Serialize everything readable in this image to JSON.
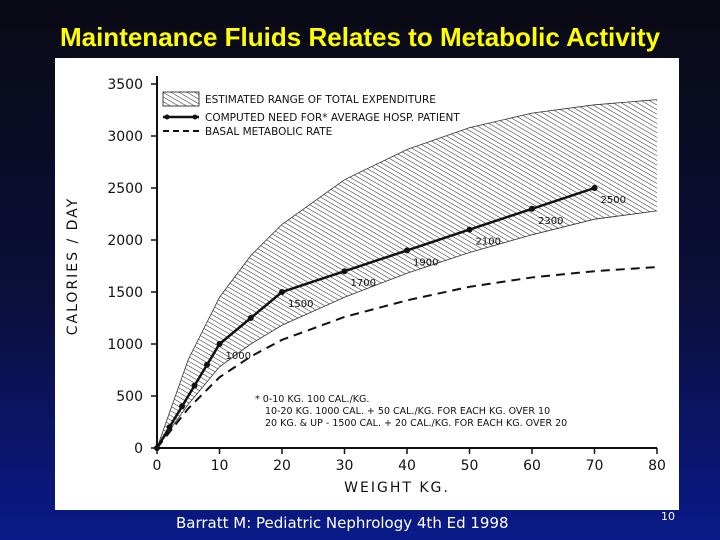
{
  "slide": {
    "title": "Maintenance Fluids Relates to Metabolic Activity",
    "citation": "Barratt M: Pediatric Nephrology 4th Ed 1998",
    "page_number": "10"
  },
  "chart_data": {
    "type": "line",
    "xlabel": "WEIGHT KG.",
    "ylabel": "CALORIES / DAY",
    "xlim": [
      0,
      80
    ],
    "ylim": [
      0,
      3500
    ],
    "x_ticks": [
      "0",
      "10",
      "20",
      "30",
      "40",
      "50",
      "60",
      "70",
      "80"
    ],
    "y_ticks": [
      "0",
      "500",
      "1000",
      "1500",
      "2000",
      "2500",
      "3000",
      "3500"
    ],
    "grid": false,
    "legend_position": "top-left",
    "legend": {
      "band": "ESTIMATED RANGE OF TOTAL EXPENDITURE",
      "computed": "COMPUTED NEED FOR* AVERAGE HOSP. PATIENT",
      "basal": "BASAL METABOLIC RATE"
    },
    "series": [
      {
        "name": "COMPUTED NEED FOR* AVERAGE HOSP. PATIENT",
        "style": "solid-dots",
        "x": [
          0,
          2,
          4,
          6,
          8,
          10,
          15,
          20,
          30,
          40,
          50,
          60,
          70
        ],
        "y": [
          0,
          200,
          400,
          600,
          800,
          1000,
          1250,
          1500,
          1700,
          1900,
          2100,
          2300,
          2500
        ]
      },
      {
        "name": "BASAL METABOLIC RATE",
        "style": "dashed",
        "x": [
          0,
          5,
          10,
          15,
          20,
          30,
          40,
          50,
          60,
          70,
          80
        ],
        "y": [
          0,
          380,
          680,
          880,
          1040,
          1260,
          1420,
          1550,
          1640,
          1700,
          1740
        ]
      },
      {
        "name": "ESTIMATED RANGE OF TOTAL EXPENDITURE",
        "style": "hatched-band",
        "x": [
          0,
          5,
          10,
          15,
          20,
          30,
          40,
          50,
          60,
          70,
          80
        ],
        "lower": [
          0,
          420,
          780,
          1000,
          1180,
          1450,
          1680,
          1880,
          2050,
          2200,
          2280
        ],
        "upper": [
          0,
          850,
          1450,
          1850,
          2150,
          2580,
          2870,
          3080,
          3220,
          3300,
          3350
        ]
      }
    ],
    "point_labels": [
      {
        "x": 10,
        "y": 1000,
        "text": "1000"
      },
      {
        "x": 20,
        "y": 1500,
        "text": "1500"
      },
      {
        "x": 30,
        "y": 1700,
        "text": "1700"
      },
      {
        "x": 40,
        "y": 1900,
        "text": "1900"
      },
      {
        "x": 50,
        "y": 2100,
        "text": "2100"
      },
      {
        "x": 60,
        "y": 2300,
        "text": "2300"
      },
      {
        "x": 70,
        "y": 2500,
        "text": "2500"
      }
    ],
    "footnote": [
      "* 0-10 KG.   100 CAL./KG.",
      "10-20 KG.   1000 CAL. + 50 CAL./KG. FOR EACH KG. OVER 10",
      "20 KG. & UP - 1500 CAL. + 20 CAL./KG. FOR EACH KG. OVER 20"
    ]
  }
}
